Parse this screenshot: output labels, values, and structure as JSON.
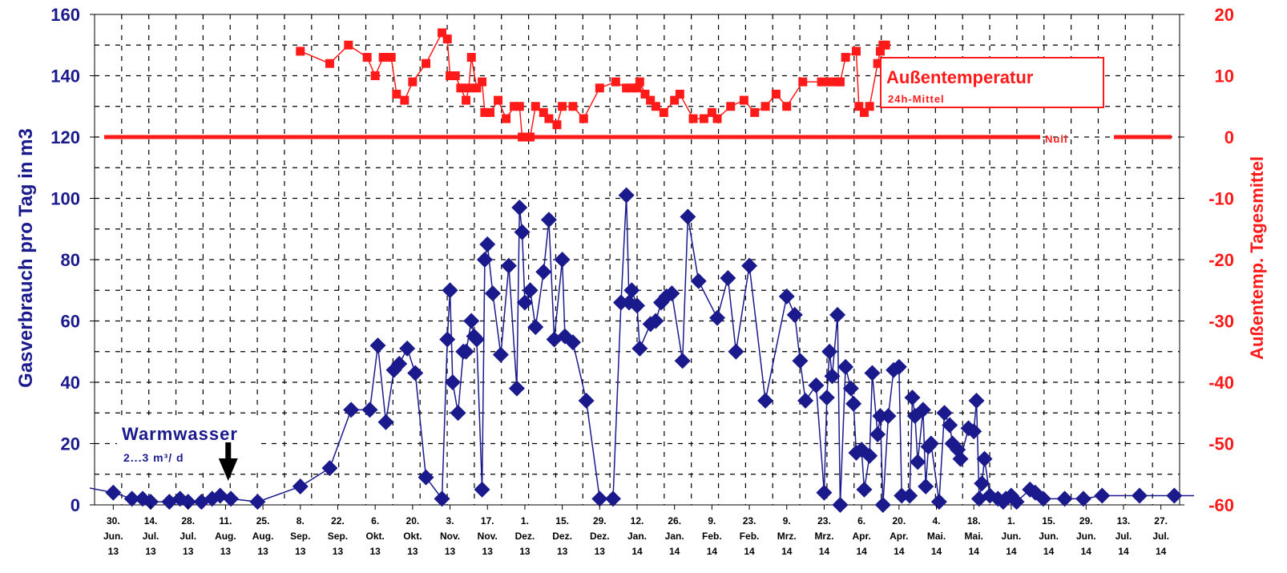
{
  "chart_data": {
    "type": "line",
    "xlabel": "",
    "ylabel": "Gasverbrauch pro Tag in m3",
    "y2label": "Außentemp. Tagesmittel",
    "ylim": [
      0,
      160
    ],
    "y_ticks": [
      0,
      20,
      40,
      60,
      80,
      100,
      120,
      140,
      160
    ],
    "y2lim": [
      -60,
      20
    ],
    "y2_ticks": [
      -60,
      -50,
      -40,
      -30,
      -20,
      -10,
      0,
      10,
      20
    ],
    "grid": true,
    "x_ticks": [
      {
        "date": "2013-06-30",
        "lines": [
          "30.",
          "Jun.",
          "13"
        ]
      },
      {
        "date": "2013-07-14",
        "lines": [
          "14.",
          "Jul.",
          "13"
        ]
      },
      {
        "date": "2013-07-28",
        "lines": [
          "28.",
          "Jul.",
          "13"
        ]
      },
      {
        "date": "2013-08-11",
        "lines": [
          "11.",
          "Aug.",
          "13"
        ]
      },
      {
        "date": "2013-08-25",
        "lines": [
          "25.",
          "Aug.",
          "13"
        ]
      },
      {
        "date": "2013-09-08",
        "lines": [
          "8.",
          "Sep.",
          "13"
        ]
      },
      {
        "date": "2013-09-22",
        "lines": [
          "22.",
          "Sep.",
          "13"
        ]
      },
      {
        "date": "2013-10-06",
        "lines": [
          "6.",
          "Okt.",
          "13"
        ]
      },
      {
        "date": "2013-10-20",
        "lines": [
          "20.",
          "Okt.",
          "13"
        ]
      },
      {
        "date": "2013-11-03",
        "lines": [
          "3.",
          "Nov.",
          "13"
        ]
      },
      {
        "date": "2013-11-17",
        "lines": [
          "17.",
          "Nov.",
          "13"
        ]
      },
      {
        "date": "2013-12-01",
        "lines": [
          "1.",
          "Dez.",
          "13"
        ]
      },
      {
        "date": "2013-12-15",
        "lines": [
          "15.",
          "Dez.",
          "13"
        ]
      },
      {
        "date": "2013-12-29",
        "lines": [
          "29.",
          "Dez.",
          "13"
        ]
      },
      {
        "date": "2014-01-12",
        "lines": [
          "12.",
          "Jan.",
          "14"
        ]
      },
      {
        "date": "2014-01-26",
        "lines": [
          "26.",
          "Jan.",
          "14"
        ]
      },
      {
        "date": "2014-02-09",
        "lines": [
          "9.",
          "Feb.",
          "14"
        ]
      },
      {
        "date": "2014-02-23",
        "lines": [
          "23.",
          "Feb.",
          "14"
        ]
      },
      {
        "date": "2014-03-09",
        "lines": [
          "9.",
          "Mrz.",
          "14"
        ]
      },
      {
        "date": "2014-03-23",
        "lines": [
          "23.",
          "Mrz.",
          "14"
        ]
      },
      {
        "date": "2014-04-06",
        "lines": [
          "6.",
          "Apr.",
          "14"
        ]
      },
      {
        "date": "2014-04-20",
        "lines": [
          "20.",
          "Apr.",
          "14"
        ]
      },
      {
        "date": "2014-05-04",
        "lines": [
          "4.",
          "Mai.",
          "14"
        ]
      },
      {
        "date": "2014-05-18",
        "lines": [
          "18.",
          "Mai.",
          "14"
        ]
      },
      {
        "date": "2014-06-01",
        "lines": [
          "1.",
          "Jun.",
          "14"
        ]
      },
      {
        "date": "2014-06-15",
        "lines": [
          "15.",
          "Jun.",
          "14"
        ]
      },
      {
        "date": "2014-06-29",
        "lines": [
          "29.",
          "Jun.",
          "14"
        ]
      },
      {
        "date": "2014-07-13",
        "lines": [
          "13.",
          "Jul.",
          "14"
        ]
      },
      {
        "date": "2014-07-27",
        "lines": [
          "27.",
          "Jul.",
          "14"
        ]
      }
    ],
    "series": [
      {
        "name": "Gasverbrauch",
        "axis": "left",
        "color": "#1a1a8c",
        "marker": "diamond",
        "points": [
          [
            "2013-06-30",
            4
          ],
          [
            "2013-07-07",
            2
          ],
          [
            "2013-07-11",
            2
          ],
          [
            "2013-07-14",
            1
          ],
          [
            "2013-07-21",
            1
          ],
          [
            "2013-07-25",
            2
          ],
          [
            "2013-07-28",
            1
          ],
          [
            "2013-08-02",
            1
          ],
          [
            "2013-08-06",
            2
          ],
          [
            "2013-08-09",
            3
          ],
          [
            "2013-08-13",
            2
          ],
          [
            "2013-08-23",
            1
          ],
          [
            "2013-09-08",
            6
          ],
          [
            "2013-09-19",
            12
          ],
          [
            "2013-09-27",
            31
          ],
          [
            "2013-10-04",
            31
          ],
          [
            "2013-10-07",
            52
          ],
          [
            "2013-10-10",
            27
          ],
          [
            "2013-10-13",
            44
          ],
          [
            "2013-10-15",
            46
          ],
          [
            "2013-10-18",
            51
          ],
          [
            "2013-10-21",
            43
          ],
          [
            "2013-10-25",
            9
          ],
          [
            "2013-10-31",
            2
          ],
          [
            "2013-11-02",
            54
          ],
          [
            "2013-11-03",
            70
          ],
          [
            "2013-11-04",
            40
          ],
          [
            "2013-11-06",
            30
          ],
          [
            "2013-11-08",
            50
          ],
          [
            "2013-11-09",
            50
          ],
          [
            "2013-11-11",
            60
          ],
          [
            "2013-11-12",
            55
          ],
          [
            "2013-11-13",
            54
          ],
          [
            "2013-11-15",
            5
          ],
          [
            "2013-11-16",
            80
          ],
          [
            "2013-11-17",
            85
          ],
          [
            "2013-11-19",
            69
          ],
          [
            "2013-11-22",
            49
          ],
          [
            "2013-11-25",
            78
          ],
          [
            "2013-11-28",
            38
          ],
          [
            "2013-11-29",
            97
          ],
          [
            "2013-11-30",
            89
          ],
          [
            "2013-12-01",
            66
          ],
          [
            "2013-12-03",
            70
          ],
          [
            "2013-12-05",
            58
          ],
          [
            "2013-12-08",
            76
          ],
          [
            "2013-12-10",
            93
          ],
          [
            "2013-12-12",
            54
          ],
          [
            "2013-12-15",
            80
          ],
          [
            "2013-12-16",
            55
          ],
          [
            "2013-12-19",
            53
          ],
          [
            "2013-12-24",
            34
          ],
          [
            "2013-12-29",
            2
          ],
          [
            "2014-01-03",
            2
          ],
          [
            "2014-01-06",
            66
          ],
          [
            "2014-01-08",
            101
          ],
          [
            "2014-01-09",
            66
          ],
          [
            "2014-01-10",
            70
          ],
          [
            "2014-01-12",
            65
          ],
          [
            "2014-01-13",
            51
          ],
          [
            "2014-01-17",
            59
          ],
          [
            "2014-01-19",
            60
          ],
          [
            "2014-01-21",
            66
          ],
          [
            "2014-01-23",
            68
          ],
          [
            "2014-01-25",
            69
          ],
          [
            "2014-01-29",
            47
          ],
          [
            "2014-01-31",
            94
          ],
          [
            "2014-02-04",
            73
          ],
          [
            "2014-02-11",
            61
          ],
          [
            "2014-02-15",
            74
          ],
          [
            "2014-02-18",
            50
          ],
          [
            "2014-02-23",
            78
          ],
          [
            "2014-03-01",
            34
          ],
          [
            "2014-03-09",
            68
          ],
          [
            "2014-03-12",
            62
          ],
          [
            "2014-03-14",
            47
          ],
          [
            "2014-03-16",
            34
          ],
          [
            "2014-03-20",
            39
          ],
          [
            "2014-03-23",
            4
          ],
          [
            "2014-03-24",
            35
          ],
          [
            "2014-03-25",
            50
          ],
          [
            "2014-03-26",
            42
          ],
          [
            "2014-03-28",
            62
          ],
          [
            "2014-03-29",
            0
          ],
          [
            "2014-03-31",
            45
          ],
          [
            "2014-04-02",
            38
          ],
          [
            "2014-04-03",
            33
          ],
          [
            "2014-04-04",
            17
          ],
          [
            "2014-04-06",
            18
          ],
          [
            "2014-04-07",
            5
          ],
          [
            "2014-04-09",
            16
          ],
          [
            "2014-04-10",
            43
          ],
          [
            "2014-04-12",
            23
          ],
          [
            "2014-04-13",
            29
          ],
          [
            "2014-04-14",
            0
          ],
          [
            "2014-04-16",
            29
          ],
          [
            "2014-04-18",
            44
          ],
          [
            "2014-04-20",
            45
          ],
          [
            "2014-04-21",
            3
          ],
          [
            "2014-04-24",
            3
          ],
          [
            "2014-04-25",
            35
          ],
          [
            "2014-04-26",
            29
          ],
          [
            "2014-04-27",
            14
          ],
          [
            "2014-04-29",
            31
          ],
          [
            "2014-04-30",
            6
          ],
          [
            "2014-05-01",
            19
          ],
          [
            "2014-05-02",
            20
          ],
          [
            "2014-05-05",
            1
          ],
          [
            "2014-05-07",
            30
          ],
          [
            "2014-05-09",
            26
          ],
          [
            "2014-05-10",
            20
          ],
          [
            "2014-05-12",
            18
          ],
          [
            "2014-05-13",
            15
          ],
          [
            "2014-05-16",
            25
          ],
          [
            "2014-05-18",
            24
          ],
          [
            "2014-05-19",
            34
          ],
          [
            "2014-05-20",
            2
          ],
          [
            "2014-05-21",
            7
          ],
          [
            "2014-05-22",
            15
          ],
          [
            "2014-05-24",
            3
          ],
          [
            "2014-05-27",
            2
          ],
          [
            "2014-05-29",
            1
          ],
          [
            "2014-05-30",
            2
          ],
          [
            "2014-06-01",
            3
          ],
          [
            "2014-06-03",
            1
          ],
          [
            "2014-06-08",
            5
          ],
          [
            "2014-06-10",
            4
          ],
          [
            "2014-06-13",
            2
          ],
          [
            "2014-06-21",
            2
          ],
          [
            "2014-06-28",
            2
          ],
          [
            "2014-07-05",
            3
          ],
          [
            "2014-07-19",
            3
          ],
          [
            "2014-08-01",
            3
          ]
        ]
      },
      {
        "name": "Außentemperatur",
        "axis": "right",
        "color": "#ff1a1a",
        "marker": "square",
        "points": [
          [
            "2013-09-08",
            14
          ],
          [
            "2013-09-19",
            12
          ],
          [
            "2013-09-26",
            15
          ],
          [
            "2013-10-03",
            13
          ],
          [
            "2013-10-06",
            10
          ],
          [
            "2013-10-09",
            13
          ],
          [
            "2013-10-12",
            13
          ],
          [
            "2013-10-14",
            7
          ],
          [
            "2013-10-17",
            6
          ],
          [
            "2013-10-20",
            9
          ],
          [
            "2013-10-25",
            12
          ],
          [
            "2013-10-31",
            17
          ],
          [
            "2013-11-02",
            16
          ],
          [
            "2013-11-03",
            10
          ],
          [
            "2013-11-05",
            10
          ],
          [
            "2013-11-07",
            8
          ],
          [
            "2013-11-09",
            6
          ],
          [
            "2013-11-10",
            8
          ],
          [
            "2013-11-11",
            13
          ],
          [
            "2013-11-13",
            8
          ],
          [
            "2013-11-15",
            9
          ],
          [
            "2013-11-16",
            4
          ],
          [
            "2013-11-18",
            4
          ],
          [
            "2013-11-21",
            6
          ],
          [
            "2013-11-24",
            3
          ],
          [
            "2013-11-27",
            5
          ],
          [
            "2013-11-29",
            5
          ],
          [
            "2013-11-30",
            0
          ],
          [
            "2013-12-03",
            0
          ],
          [
            "2013-12-05",
            5
          ],
          [
            "2013-12-08",
            4
          ],
          [
            "2013-12-10",
            3
          ],
          [
            "2013-12-13",
            2
          ],
          [
            "2013-12-15",
            5
          ],
          [
            "2013-12-19",
            5
          ],
          [
            "2013-12-23",
            3
          ],
          [
            "2013-12-29",
            8
          ],
          [
            "2014-01-04",
            9
          ],
          [
            "2014-01-08",
            8
          ],
          [
            "2014-01-10",
            8
          ],
          [
            "2014-01-12",
            8
          ],
          [
            "2014-01-13",
            9
          ],
          [
            "2014-01-15",
            7
          ],
          [
            "2014-01-17",
            6
          ],
          [
            "2014-01-19",
            5
          ],
          [
            "2014-01-22",
            4
          ],
          [
            "2014-01-26",
            6
          ],
          [
            "2014-01-28",
            7
          ],
          [
            "2014-02-02",
            3
          ],
          [
            "2014-02-06",
            3
          ],
          [
            "2014-02-09",
            4
          ],
          [
            "2014-02-11",
            3
          ],
          [
            "2014-02-16",
            5
          ],
          [
            "2014-02-21",
            6
          ],
          [
            "2014-02-25",
            4
          ],
          [
            "2014-03-01",
            5
          ],
          [
            "2014-03-05",
            7
          ],
          [
            "2014-03-09",
            5
          ],
          [
            "2014-03-15",
            9
          ],
          [
            "2014-03-22",
            9
          ],
          [
            "2014-03-25",
            9
          ],
          [
            "2014-03-28",
            9
          ],
          [
            "2014-03-29",
            9
          ],
          [
            "2014-03-31",
            13
          ],
          [
            "2014-04-04",
            14
          ],
          [
            "2014-04-05",
            5
          ],
          [
            "2014-04-07",
            4
          ],
          [
            "2014-04-09",
            5
          ],
          [
            "2014-04-12",
            12
          ],
          [
            "2014-04-13",
            14
          ],
          [
            "2014-04-14",
            15
          ],
          [
            "2014-04-15",
            15
          ]
        ]
      }
    ],
    "reference_line": {
      "axis": "right",
      "value": 0,
      "label": "Null",
      "color": "#ff1a1a"
    },
    "annotations": {
      "temperature_box": {
        "title": "Außentemperatur",
        "subtitle": "24h-Mittel"
      },
      "warmwasser_box": {
        "title": "Warmwasser",
        "subtitle": "2...3  m³/ d"
      },
      "arrow_date": "2013-08-12"
    }
  }
}
